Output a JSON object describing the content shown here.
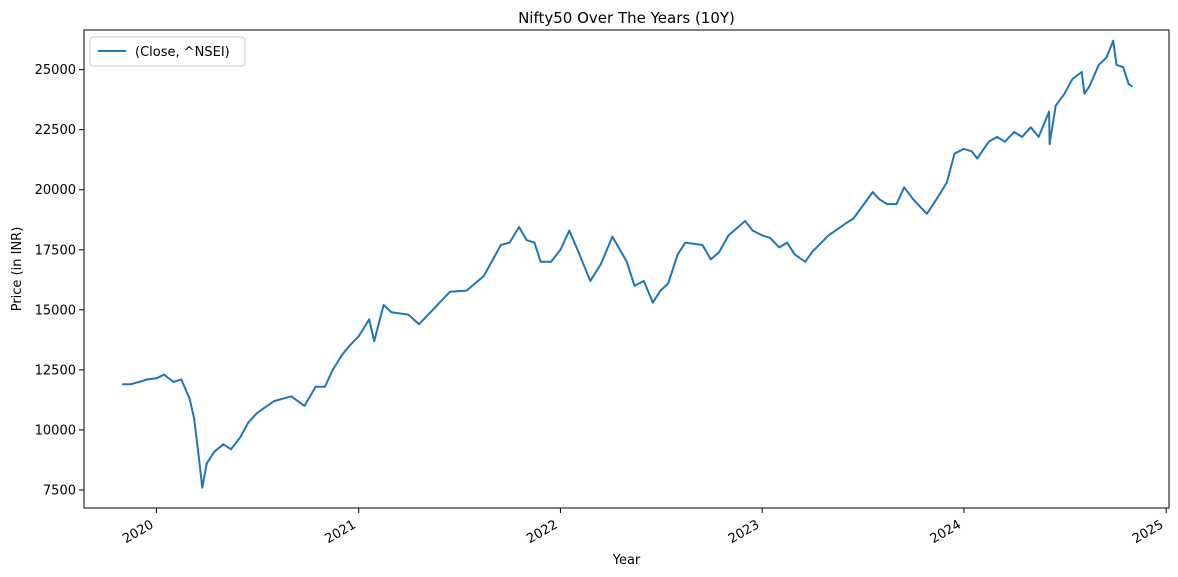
{
  "chart_data": {
    "type": "line",
    "title": "Nifty50 Over The Years (10Y)",
    "xlabel": "Year",
    "ylabel": "Price (in INR)",
    "xlim": [
      "2019-08-23",
      "2025-01-06"
    ],
    "ylim": [
      6750,
      26650
    ],
    "x_ticks": [
      "2020",
      "2021",
      "2022",
      "2023",
      "2024",
      "2025"
    ],
    "y_ticks": [
      7500,
      10000,
      12500,
      15000,
      17500,
      20000,
      22500,
      25000
    ],
    "legend": {
      "placement": "top-left",
      "entries": [
        "(Close, ^NSEI)"
      ]
    },
    "grid": false,
    "series": [
      {
        "name": "(Close, ^NSEI)",
        "color": "#1f77b4",
        "x": [
          "2019-11-01",
          "2019-11-15",
          "2019-12-01",
          "2019-12-15",
          "2020-01-01",
          "2020-01-15",
          "2020-02-01",
          "2020-02-15",
          "2020-03-01",
          "2020-03-09",
          "2020-03-16",
          "2020-03-24",
          "2020-04-01",
          "2020-04-15",
          "2020-05-01",
          "2020-05-15",
          "2020-06-01",
          "2020-06-15",
          "2020-07-01",
          "2020-08-01",
          "2020-09-01",
          "2020-09-25",
          "2020-10-15",
          "2020-11-01",
          "2020-11-15",
          "2020-12-01",
          "2020-12-15",
          "2021-01-01",
          "2021-01-20",
          "2021-01-29",
          "2021-02-15",
          "2021-03-01",
          "2021-04-01",
          "2021-04-20",
          "2021-05-15",
          "2021-06-15",
          "2021-07-15",
          "2021-08-15",
          "2021-09-01",
          "2021-09-15",
          "2021-10-01",
          "2021-10-18",
          "2021-11-01",
          "2021-11-15",
          "2021-11-26",
          "2021-12-15",
          "2022-01-01",
          "2022-01-17",
          "2022-02-01",
          "2022-02-24",
          "2022-03-15",
          "2022-04-05",
          "2022-05-01",
          "2022-05-15",
          "2022-06-01",
          "2022-06-17",
          "2022-07-01",
          "2022-07-15",
          "2022-08-01",
          "2022-08-15",
          "2022-09-15",
          "2022-09-30",
          "2022-10-15",
          "2022-11-01",
          "2022-12-01",
          "2022-12-15",
          "2023-01-01",
          "2023-01-15",
          "2023-02-01",
          "2023-02-15",
          "2023-03-01",
          "2023-03-20",
          "2023-04-01",
          "2023-05-01",
          "2023-06-01",
          "2023-06-15",
          "2023-07-01",
          "2023-07-20",
          "2023-08-01",
          "2023-08-15",
          "2023-09-01",
          "2023-09-15",
          "2023-10-01",
          "2023-10-26",
          "2023-11-15",
          "2023-12-01",
          "2023-12-15",
          "2024-01-01",
          "2024-01-15",
          "2024-01-25",
          "2024-02-15",
          "2024-03-01",
          "2024-03-15",
          "2024-04-01",
          "2024-04-15",
          "2024-05-01",
          "2024-05-15",
          "2024-06-03",
          "2024-06-04",
          "2024-06-15",
          "2024-07-01",
          "2024-07-15",
          "2024-08-01",
          "2024-08-06",
          "2024-08-15",
          "2024-09-01",
          "2024-09-15",
          "2024-09-27",
          "2024-10-03",
          "2024-10-15",
          "2024-10-25",
          "2024-10-31"
        ],
        "values": [
          11900,
          11900,
          12000,
          12100,
          12150,
          12300,
          12000,
          12100,
          11300,
          10500,
          9200,
          7600,
          8600,
          9100,
          9400,
          9200,
          9700,
          10300,
          10700,
          11200,
          11400,
          11000,
          11800,
          11800,
          12500,
          13100,
          13500,
          13900,
          14600,
          13700,
          15200,
          14900,
          14800,
          14400,
          15000,
          15750,
          15800,
          16400,
          17100,
          17700,
          17800,
          18450,
          17900,
          17800,
          17000,
          17000,
          17500,
          18300,
          17500,
          16200,
          16900,
          18050,
          17000,
          16000,
          16200,
          15300,
          15800,
          16100,
          17300,
          17800,
          17700,
          17100,
          17400,
          18100,
          18700,
          18300,
          18100,
          18000,
          17600,
          17800,
          17300,
          17000,
          17400,
          18100,
          18600,
          18800,
          19300,
          19900,
          19600,
          19400,
          19400,
          20100,
          19600,
          19000,
          19700,
          20300,
          21500,
          21700,
          21600,
          21300,
          22000,
          22200,
          22000,
          22400,
          22200,
          22600,
          22200,
          23250,
          21900,
          23500,
          24000,
          24600,
          24900,
          24000,
          24300,
          25200,
          25500,
          26200,
          25200,
          25100,
          24400,
          24300
        ]
      }
    ]
  }
}
